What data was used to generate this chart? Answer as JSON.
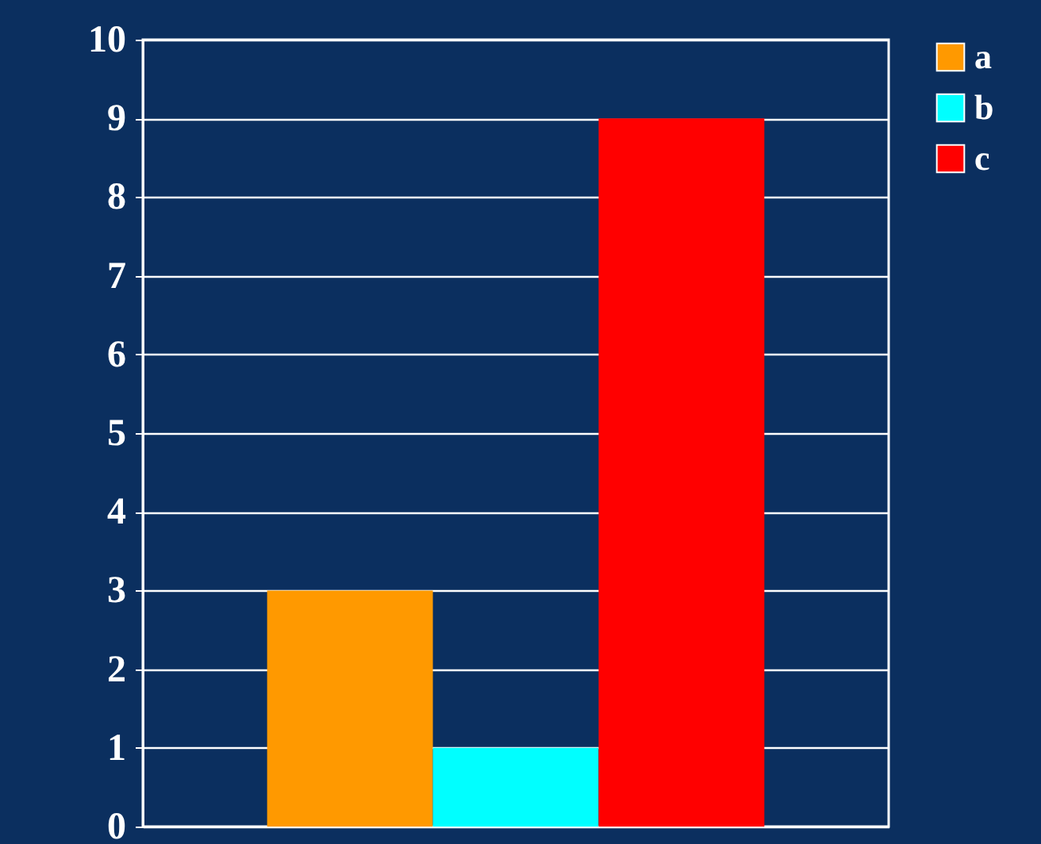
{
  "chart_data": {
    "type": "bar",
    "categories": [
      null
    ],
    "series": [
      {
        "name": "a",
        "color": "#ff9900",
        "values": [
          3
        ]
      },
      {
        "name": "b",
        "color": "#00ffff",
        "values": [
          1
        ]
      },
      {
        "name": "c",
        "color": "#ff0000",
        "values": [
          9
        ]
      }
    ],
    "ylim": [
      0,
      10
    ],
    "yticks": [
      0,
      1,
      2,
      3,
      4,
      5,
      6,
      7,
      8,
      9,
      10
    ],
    "grid": "y",
    "legend": "right",
    "tick_labels": "y"
  }
}
